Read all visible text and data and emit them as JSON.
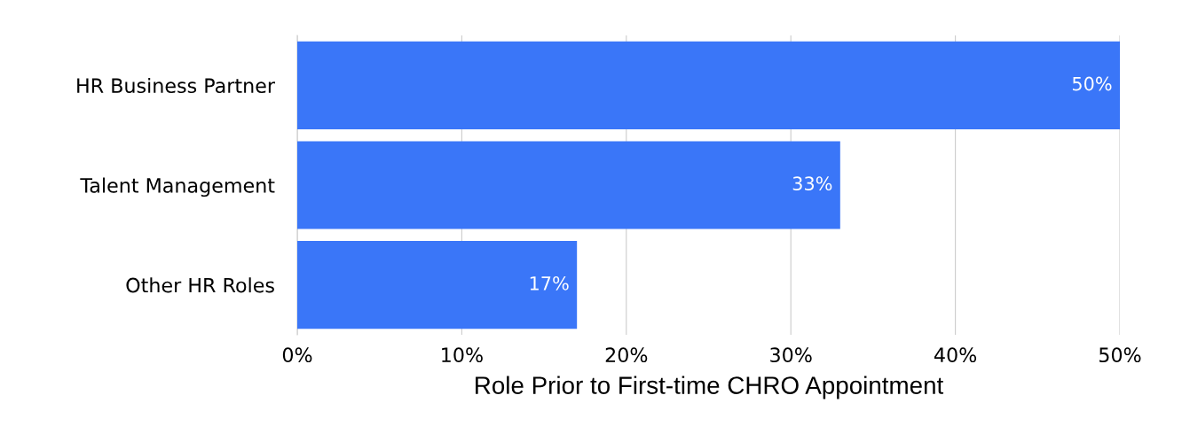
{
  "chart_data": {
    "type": "bar",
    "orientation": "horizontal",
    "xlabel": "Role Prior to First-time CHRO Appointment",
    "categories": [
      "HR Business Partner",
      "Talent Management",
      "Other HR Roles"
    ],
    "values": [
      50,
      33,
      17
    ],
    "color": "#3a76f8",
    "value_labels": [
      "50%",
      "33%",
      "17%"
    ],
    "xlim": [
      0,
      50
    ],
    "xticks": [
      {
        "value": 0,
        "label": "0%"
      },
      {
        "value": 10,
        "label": "10%"
      },
      {
        "value": 20,
        "label": "20%"
      },
      {
        "value": 30,
        "label": "30%"
      },
      {
        "value": 40,
        "label": "40%"
      },
      {
        "value": 50,
        "label": "50%"
      }
    ],
    "grid": "x"
  }
}
